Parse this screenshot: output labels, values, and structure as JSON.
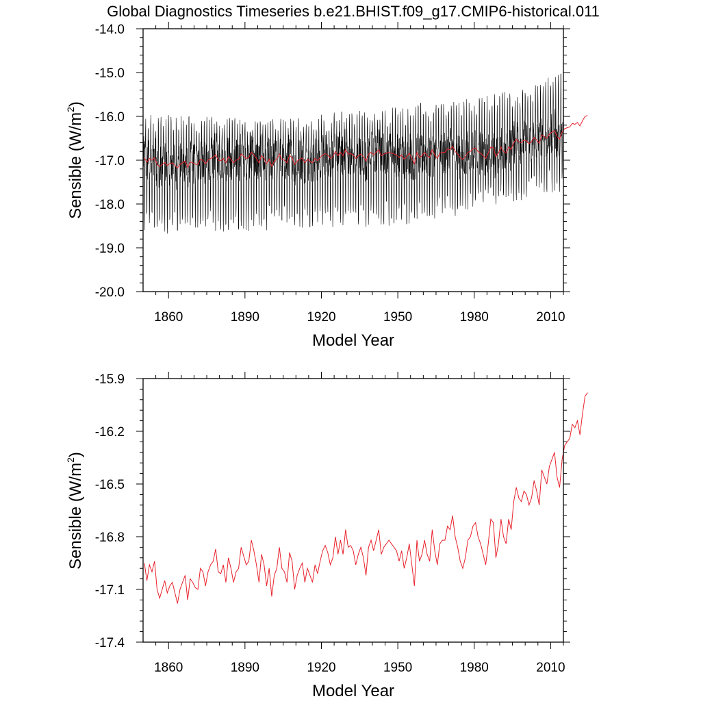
{
  "page": {
    "title": "Global Diagnostics Timeseries b.e21.BHIST.f09_g17.CMIP6-historical.011"
  },
  "colors": {
    "monthly_line": "#000000",
    "annual_line": "#e8202a",
    "axis": "#000000"
  },
  "chart_data": [
    {
      "type": "line",
      "title": "Global Diagnostics Timeseries b.e21.BHIST.f09_g17.CMIP6-historical.011",
      "xlabel": "Model Year",
      "ylabel": "Sensible (W/m²)",
      "ylabel_base": "Sensible (W/m",
      "ylabel_sup": "2",
      "ylabel_tail": ")",
      "xlim": [
        1850,
        2015
      ],
      "ylim": [
        -20.0,
        -14.0
      ],
      "xticks": [
        1860,
        1890,
        1920,
        1950,
        1980,
        2010
      ],
      "yticks": [
        -20.0,
        -19.0,
        -18.0,
        -17.0,
        -16.0,
        -15.0,
        -14.0
      ],
      "ytick_labels": [
        "-20.0",
        "-19.0",
        "-18.0",
        "-17.0",
        "-16.0",
        "-15.0",
        "-14.0"
      ],
      "grid": false,
      "series": [
        {
          "role": "monthly",
          "color": "#000000",
          "x_start": 1850,
          "x_end": 2015,
          "seasonal_max_anchors": [
            [
              1850,
              -16.2
            ],
            [
              1900,
              -16.3
            ],
            [
              1950,
              -16.0
            ],
            [
              1980,
              -15.8
            ],
            [
              2000,
              -15.6
            ],
            [
              2015,
              -15.2
            ]
          ],
          "seasonal_min_anchors": [
            [
              1850,
              -18.4
            ],
            [
              1900,
              -18.3
            ],
            [
              1950,
              -18.2
            ],
            [
              1980,
              -17.9
            ],
            [
              2000,
              -17.6
            ],
            [
              2015,
              -17.4
            ]
          ]
        },
        {
          "role": "annual",
          "color": "#e8202a",
          "source": "annual_means"
        }
      ]
    },
    {
      "type": "line",
      "xlabel": "Model Year",
      "ylabel": "Sensible (W/m²)",
      "ylabel_base": "Sensible (W/m",
      "ylabel_sup": "2",
      "ylabel_tail": ")",
      "xlim": [
        1850,
        2015
      ],
      "ylim": [
        -17.4,
        -15.9
      ],
      "xticks": [
        1860,
        1890,
        1920,
        1950,
        1980,
        2010
      ],
      "yticks": [
        -17.4,
        -17.1,
        -16.8,
        -16.5,
        -16.2,
        -15.9
      ],
      "ytick_labels": [
        "-17.4",
        "-17.1",
        "-16.8",
        "-16.5",
        "-16.2",
        "-15.9"
      ],
      "grid": false,
      "series": [
        {
          "role": "annual",
          "color": "#e8202a",
          "source": "annual_means"
        }
      ]
    }
  ],
  "annual_means": {
    "x_start": 1850,
    "values": [
      -16.95,
      -17.05,
      -16.96,
      -17.0,
      -16.94,
      -17.1,
      -17.15,
      -17.1,
      -17.05,
      -17.12,
      -17.08,
      -17.06,
      -17.12,
      -17.18,
      -17.1,
      -17.06,
      -17.02,
      -17.16,
      -17.04,
      -17.06,
      -17.09,
      -17.1,
      -16.98,
      -17.0,
      -17.08,
      -17.0,
      -16.96,
      -16.94,
      -16.87,
      -17.0,
      -17.01,
      -16.96,
      -17.06,
      -16.92,
      -16.98,
      -17.06,
      -17.0,
      -16.98,
      -16.86,
      -16.91,
      -16.96,
      -16.94,
      -16.82,
      -16.88,
      -16.96,
      -17.06,
      -16.9,
      -16.96,
      -17.08,
      -16.98,
      -17.14,
      -17.02,
      -16.98,
      -16.86,
      -16.98,
      -17.0,
      -17.06,
      -16.89,
      -16.94,
      -17.1,
      -17.02,
      -16.98,
      -16.95,
      -17.06,
      -16.98,
      -17.02,
      -17.06,
      -16.96,
      -17.01,
      -16.94,
      -16.88,
      -16.85,
      -16.89,
      -16.96,
      -16.92,
      -16.8,
      -16.9,
      -16.82,
      -16.9,
      -16.76,
      -16.86,
      -16.85,
      -16.88,
      -16.96,
      -16.9,
      -16.86,
      -16.92,
      -17.02,
      -16.86,
      -16.82,
      -16.88,
      -16.82,
      -16.76,
      -16.9,
      -16.86,
      -16.84,
      -16.82,
      -16.84,
      -16.86,
      -16.88,
      -16.94,
      -16.88,
      -16.98,
      -16.92,
      -16.84,
      -16.96,
      -17.08,
      -16.82,
      -16.94,
      -16.9,
      -16.82,
      -16.9,
      -16.94,
      -16.76,
      -16.88,
      -16.96,
      -16.84,
      -16.82,
      -16.82,
      -16.74,
      -16.76,
      -16.68,
      -16.8,
      -16.86,
      -16.94,
      -16.98,
      -16.92,
      -16.82,
      -16.8,
      -16.74,
      -16.72,
      -16.8,
      -16.84,
      -16.9,
      -16.96,
      -16.84,
      -16.7,
      -16.72,
      -16.92,
      -16.84,
      -16.7,
      -16.8,
      -16.84,
      -16.7,
      -16.76,
      -16.6,
      -16.52,
      -16.58,
      -16.6,
      -16.54,
      -16.56,
      -16.62,
      -16.58,
      -16.48,
      -16.54,
      -16.62,
      -16.42,
      -16.46,
      -16.5,
      -16.4,
      -16.36,
      -16.32,
      -16.46,
      -16.52,
      -16.36,
      -16.28,
      -16.26,
      -16.24,
      -16.16,
      -16.18,
      -16.14,
      -16.22,
      -16.1,
      -16.0,
      -15.98
    ]
  }
}
